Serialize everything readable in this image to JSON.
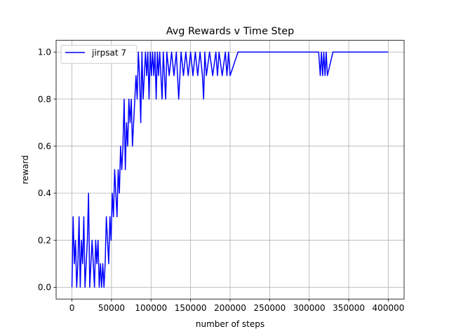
{
  "chart_data": {
    "type": "line",
    "title": "Avg Rewards v Time Step",
    "xlabel": "number of steps",
    "ylabel": "reward",
    "xlim": [
      -20000,
      420000
    ],
    "ylim": [
      -0.05,
      1.05
    ],
    "xticks": [
      0,
      50000,
      100000,
      150000,
      200000,
      250000,
      300000,
      350000,
      400000
    ],
    "xtick_labels": [
      "0",
      "50000",
      "100000",
      "150000",
      "200000",
      "250000",
      "300000",
      "350000",
      "400000"
    ],
    "yticks": [
      0.0,
      0.2,
      0.4,
      0.6,
      0.8,
      1.0
    ],
    "ytick_labels": [
      "0.0",
      "0.2",
      "0.4",
      "0.6",
      "0.8",
      "1.0"
    ],
    "grid": true,
    "legend": "top-left",
    "series": [
      {
        "name": "jirpsat 7",
        "color": "#0000ff",
        "x": [
          0,
          1500,
          3000,
          4500,
          6000,
          7500,
          9000,
          10500,
          12000,
          13500,
          15000,
          16500,
          18000,
          19500,
          21000,
          22500,
          24000,
          25500,
          27000,
          28500,
          30000,
          31500,
          33000,
          34500,
          36000,
          37500,
          39000,
          40500,
          42000,
          43500,
          45000,
          46500,
          48000,
          49500,
          51000,
          52500,
          54000,
          55500,
          57000,
          58500,
          60000,
          61500,
          63000,
          64500,
          66000,
          67500,
          69000,
          70500,
          72000,
          73500,
          75000,
          76500,
          78000,
          79500,
          81000,
          82500,
          84000,
          85500,
          87000,
          88500,
          90000,
          91500,
          93000,
          94500,
          96000,
          97500,
          99000,
          100500,
          102000,
          103500,
          105000,
          106500,
          108000,
          109500,
          111000,
          112500,
          114000,
          115500,
          117000,
          118500,
          120000,
          123000,
          126000,
          129000,
          132000,
          135000,
          138000,
          141000,
          144000,
          147000,
          150000,
          153000,
          156000,
          159000,
          162000,
          165000,
          166500,
          168000,
          170000,
          174000,
          178000,
          182000,
          184000,
          186000,
          190000,
          194000,
          196000,
          198000,
          200000,
          210000,
          250000,
          300000,
          312000,
          314000,
          315500,
          317000,
          318500,
          320000,
          321500,
          323000,
          330000,
          400000
        ],
        "y": [
          0.0,
          0.3,
          0.1,
          0.2,
          0.0,
          0.1,
          0.3,
          0.0,
          0.2,
          0.1,
          0.3,
          0.0,
          0.1,
          0.2,
          0.4,
          0.0,
          0.1,
          0.2,
          0.1,
          0.0,
          0.2,
          0.1,
          0.2,
          0.0,
          0.1,
          0.0,
          0.1,
          0.0,
          0.1,
          0.3,
          0.2,
          0.1,
          0.3,
          0.2,
          0.4,
          0.3,
          0.5,
          0.4,
          0.3,
          0.5,
          0.4,
          0.6,
          0.5,
          0.6,
          0.8,
          0.5,
          0.7,
          0.6,
          0.8,
          0.7,
          0.8,
          0.6,
          0.7,
          0.8,
          0.9,
          0.8,
          1.0,
          0.9,
          0.7,
          1.0,
          0.8,
          0.9,
          1.0,
          0.9,
          1.0,
          0.8,
          1.0,
          0.9,
          1.0,
          0.9,
          1.0,
          0.8,
          1.0,
          0.9,
          1.0,
          0.9,
          0.8,
          1.0,
          0.9,
          0.8,
          1.0,
          0.9,
          1.0,
          0.9,
          1.0,
          0.8,
          1.0,
          0.9,
          1.0,
          0.9,
          1.0,
          0.9,
          1.0,
          0.9,
          1.0,
          0.9,
          0.8,
          1.0,
          0.9,
          1.0,
          0.9,
          1.0,
          0.9,
          1.0,
          0.9,
          1.0,
          0.9,
          1.0,
          0.9,
          1.0,
          1.0,
          1.0,
          1.0,
          0.9,
          1.0,
          0.9,
          1.0,
          0.9,
          1.0,
          0.9,
          1.0,
          1.0
        ]
      }
    ]
  }
}
